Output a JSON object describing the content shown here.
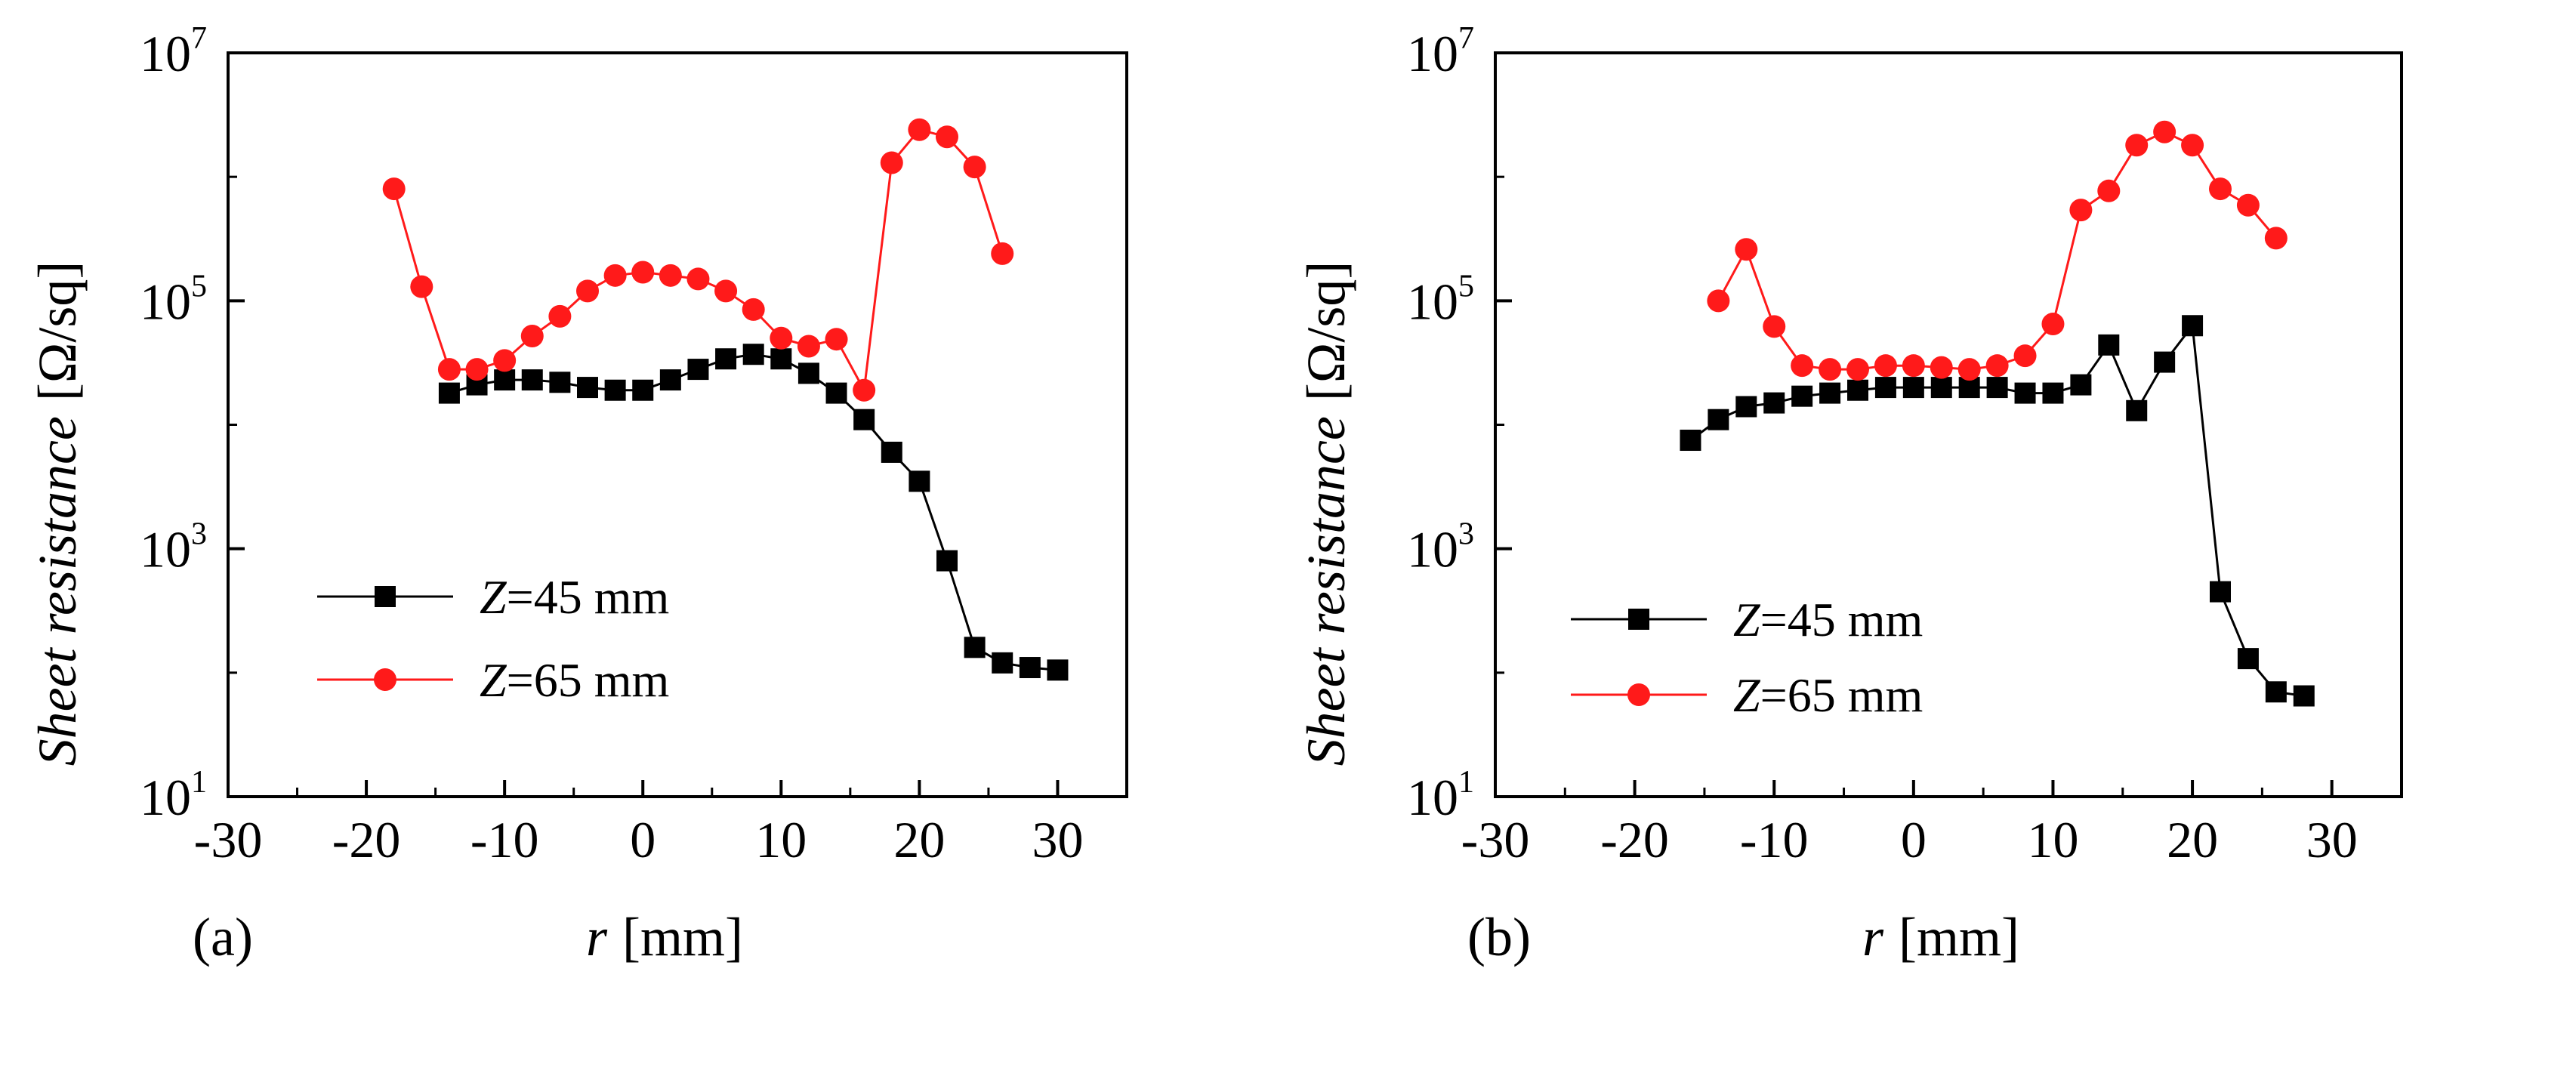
{
  "chart_data": [
    {
      "panel": "(a)",
      "type": "line",
      "xlabel_var": "r",
      "xlabel_unit": "[mm]",
      "ylabel_var": "Sheet resistance",
      "ylabel_unit": "[Ω/sq]",
      "xlim": [
        -30,
        35
      ],
      "ylim": [
        10,
        10000000
      ],
      "yscale": "log",
      "xticks": [
        -30,
        -20,
        -10,
        0,
        10,
        20,
        30
      ],
      "xtick_labels": [
        "-30",
        "-20",
        "-10",
        "0",
        "10",
        "20",
        "30"
      ],
      "yticks": [
        {
          "base": "10",
          "exp": "1",
          "value": 10
        },
        {
          "base": "10",
          "exp": "3",
          "value": 1000
        },
        {
          "base": "10",
          "exp": "5",
          "value": 100000
        },
        {
          "base": "10",
          "exp": "7",
          "value": 10000000
        }
      ],
      "legend_position": "lower-left",
      "series": [
        {
          "name_var": "Z",
          "name_rest": "=45 mm",
          "marker": "square",
          "color": "#000000",
          "x": [
            -14,
            -12,
            -10,
            -8,
            -6,
            -4,
            -2,
            0,
            2,
            4,
            6,
            8,
            10,
            12,
            14,
            16,
            18,
            20,
            22,
            24,
            26,
            28,
            30
          ],
          "values": [
            18000,
            21000,
            23000,
            23000,
            22000,
            20000,
            19000,
            19000,
            23000,
            28000,
            34000,
            37000,
            34000,
            26000,
            18000,
            11000,
            6000,
            3500,
            800,
            160,
            120,
            110,
            105
          ]
        },
        {
          "name_var": "Z",
          "name_rest": "=65 mm",
          "marker": "circle",
          "color": "#ff1a1a",
          "x": [
            -18,
            -16,
            -14,
            -12,
            -10,
            -8,
            -6,
            -4,
            -2,
            0,
            2,
            4,
            6,
            8,
            10,
            12,
            14,
            16,
            18,
            20,
            22,
            24,
            26
          ],
          "values": [
            800000,
            130000,
            28000,
            28000,
            33000,
            52000,
            75000,
            120000,
            160000,
            170000,
            160000,
            150000,
            120000,
            85000,
            50000,
            43000,
            49000,
            19000,
            1300000,
            2400000,
            2100000,
            1200000,
            240000
          ]
        }
      ]
    },
    {
      "panel": "(b)",
      "type": "line",
      "xlabel_var": "r",
      "xlabel_unit": "[mm]",
      "ylabel_var": "Sheet resistance",
      "ylabel_unit": "[Ω/sq]",
      "xlim": [
        -30,
        35
      ],
      "ylim": [
        10,
        10000000
      ],
      "yscale": "log",
      "xticks": [
        -30,
        -20,
        -10,
        0,
        10,
        20,
        30
      ],
      "xtick_labels": [
        "-30",
        "-20",
        "-10",
        "0",
        "10",
        "20",
        "30"
      ],
      "yticks": [
        {
          "base": "10",
          "exp": "1",
          "value": 10
        },
        {
          "base": "10",
          "exp": "3",
          "value": 1000
        },
        {
          "base": "10",
          "exp": "5",
          "value": 100000
        },
        {
          "base": "10",
          "exp": "7",
          "value": 10000000
        }
      ],
      "legend_position": "lower-left",
      "series": [
        {
          "name_var": "Z",
          "name_rest": "=45 mm",
          "marker": "square",
          "color": "#000000",
          "x": [
            -16,
            -14,
            -12,
            -10,
            -8,
            -6,
            -4,
            -2,
            0,
            2,
            4,
            6,
            8,
            10,
            12,
            14,
            16,
            18,
            20,
            22,
            24,
            26,
            28
          ],
          "values": [
            7500,
            11000,
            14000,
            15000,
            17000,
            18000,
            19000,
            20000,
            20000,
            20000,
            20000,
            20000,
            18000,
            18000,
            21000,
            44000,
            13000,
            32000,
            63000,
            450,
            130,
            70,
            65
          ]
        },
        {
          "name_var": "Z",
          "name_rest": "=65 mm",
          "marker": "circle",
          "color": "#ff1a1a",
          "x": [
            -14,
            -12,
            -10,
            -8,
            -6,
            -4,
            -2,
            0,
            2,
            4,
            6,
            8,
            10,
            12,
            14,
            16,
            18,
            20,
            22,
            24,
            26
          ],
          "values": [
            100000,
            260000,
            62000,
            30000,
            28000,
            28000,
            30000,
            30000,
            29000,
            28000,
            30000,
            36000,
            65000,
            540000,
            770000,
            1800000,
            2300000,
            1800000,
            800000,
            590000,
            320000
          ]
        }
      ]
    }
  ]
}
